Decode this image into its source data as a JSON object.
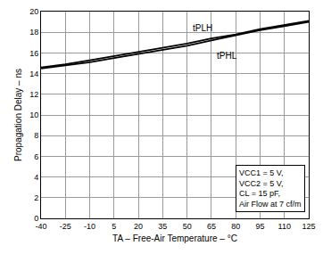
{
  "chart_data": {
    "type": "line",
    "x_label": "TA – Free-Air Temperature – °C",
    "y_label": "Propagation Delay – ns",
    "x": [
      -40,
      -25,
      -10,
      5,
      20,
      35,
      50,
      65,
      80,
      95,
      110,
      125
    ],
    "series": [
      {
        "name": "tPLH",
        "color": "#000000",
        "line_style": "solid",
        "values": [
          14.6,
          14.9,
          15.3,
          15.7,
          16.1,
          16.5,
          16.9,
          17.4,
          17.8,
          18.3,
          18.7,
          19.1
        ]
      },
      {
        "name": "tPHL",
        "color": "#000000",
        "line_style": "solid",
        "values": [
          14.5,
          14.8,
          15.1,
          15.5,
          15.9,
          16.3,
          16.7,
          17.2,
          17.7,
          18.2,
          18.6,
          19.0
        ]
      }
    ],
    "xlim": [
      -40,
      125
    ],
    "xticks": [
      -40,
      -25,
      -10,
      5,
      20,
      35,
      50,
      65,
      80,
      95,
      110,
      125
    ],
    "ylim": [
      0,
      20
    ],
    "yticks": [
      0,
      2,
      4,
      6,
      8,
      10,
      12,
      14,
      16,
      18,
      20
    ],
    "grid": true,
    "annotations": [
      "VCC1 = 5 V,",
      "VCC2 = 5 V,",
      "CL = 15 pF,",
      "Air Flow at 7 cf/m"
    ]
  }
}
